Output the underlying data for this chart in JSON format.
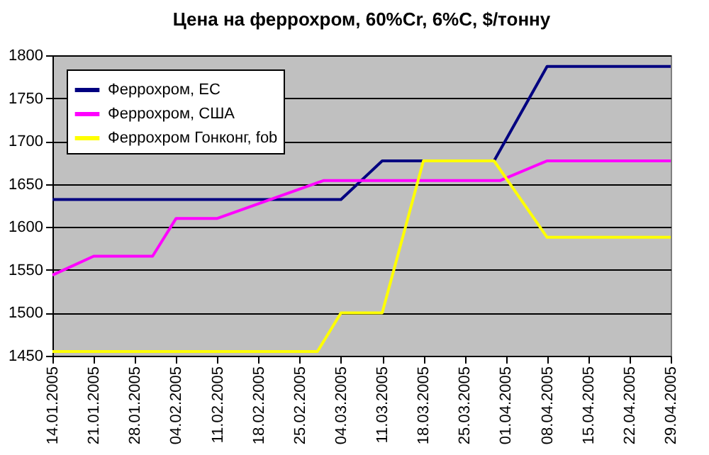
{
  "chart_data": {
    "type": "line",
    "title": "Цена на феррохром, 60%Cr, 6%C, $/тонну",
    "series": [
      {
        "name": "Феррохром, ЕС",
        "color": "#000080",
        "x": [
          "2005-01-14",
          "2005-03-04",
          "2005-03-11",
          "2005-03-30",
          "2005-04-08",
          "2005-04-29"
        ],
        "values": [
          1632,
          1632,
          1677,
          1677,
          1787,
          1787
        ]
      },
      {
        "name": "Феррохром, США",
        "color": "#ff00ff",
        "x": [
          "2005-01-14",
          "2005-01-21",
          "2005-01-31",
          "2005-02-04",
          "2005-02-11",
          "2005-03-01",
          "2005-03-31",
          "2005-04-08",
          "2005-04-29"
        ],
        "values": [
          1544,
          1566,
          1566,
          1610,
          1610,
          1654,
          1654,
          1677,
          1677
        ]
      },
      {
        "name": "Феррохром Гонконг, fob",
        "color": "#ffff00",
        "x": [
          "2005-01-14",
          "2005-02-28",
          "2005-03-04",
          "2005-03-11",
          "2005-03-18",
          "2005-03-30",
          "2005-04-08",
          "2005-04-29"
        ],
        "values": [
          1455,
          1455,
          1500,
          1500,
          1677,
          1677,
          1588,
          1588
        ]
      }
    ],
    "xlim": [
      "2005-01-14",
      "2005-04-29"
    ],
    "xticks": [
      {
        "value": "2005-01-14",
        "label": "14.01.2005"
      },
      {
        "value": "2005-01-21",
        "label": "21.01.2005"
      },
      {
        "value": "2005-01-28",
        "label": "28.01.2005"
      },
      {
        "value": "2005-02-04",
        "label": "04.02.2005"
      },
      {
        "value": "2005-02-11",
        "label": "11.02.2005"
      },
      {
        "value": "2005-02-18",
        "label": "18.02.2005"
      },
      {
        "value": "2005-02-25",
        "label": "25.02.2005"
      },
      {
        "value": "2005-03-04",
        "label": "04.03.2005"
      },
      {
        "value": "2005-03-11",
        "label": "11.03.2005"
      },
      {
        "value": "2005-03-18",
        "label": "18.03.2005"
      },
      {
        "value": "2005-03-25",
        "label": "25.03.2005"
      },
      {
        "value": "2005-04-01",
        "label": "01.04.2005"
      },
      {
        "value": "2005-04-08",
        "label": "08.04.2005"
      },
      {
        "value": "2005-04-15",
        "label": "15.04.2005"
      },
      {
        "value": "2005-04-22",
        "label": "22.04.2005"
      },
      {
        "value": "2005-04-29",
        "label": "29.04.2005"
      }
    ],
    "ylim": [
      1450,
      1800
    ],
    "yticks": [
      1450,
      1500,
      1550,
      1600,
      1650,
      1700,
      1750,
      1800
    ],
    "grid": "y",
    "legend": "top left",
    "marker": "none",
    "line_style": "solid"
  }
}
